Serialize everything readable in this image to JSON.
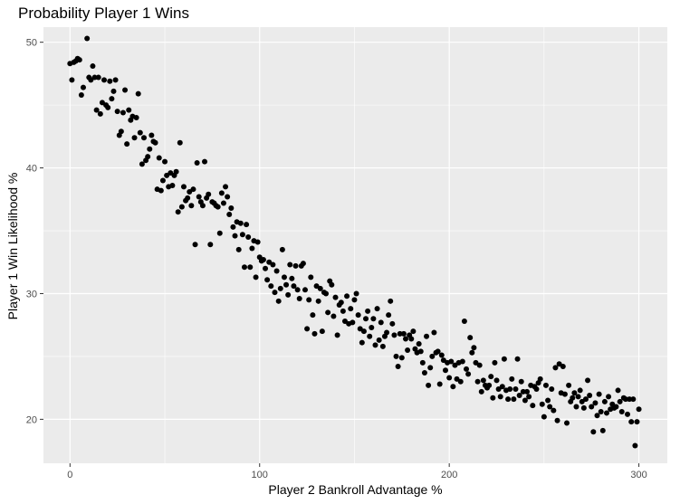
{
  "chart_data": {
    "type": "scatter",
    "title": "Probability Player 1 Wins",
    "xlabel": "Player 2 Bankroll Advantage %",
    "ylabel": "Player 1 Win Likelihood %",
    "xlim": [
      -14,
      315
    ],
    "ylim": [
      16.5,
      51.2
    ],
    "xticks": [
      0,
      100,
      200,
      300
    ],
    "yticks": [
      20,
      30,
      40,
      50
    ],
    "grid": true,
    "point_color": "#000000",
    "panel_background": "#ebebeb",
    "grid_color": "#ffffff",
    "points": [
      [
        0,
        48.3
      ],
      [
        2,
        48.4
      ],
      [
        3,
        48.5
      ],
      [
        4,
        48.7
      ],
      [
        5,
        48.6
      ],
      [
        6,
        45.8
      ],
      [
        7,
        46.4
      ],
      [
        9,
        50.3
      ],
      [
        10,
        47.2
      ],
      [
        11,
        47.0
      ],
      [
        12,
        48.1
      ],
      [
        13,
        47.2
      ],
      [
        14,
        44.6
      ],
      [
        15,
        47.2
      ],
      [
        16,
        44.3
      ],
      [
        17,
        45.2
      ],
      [
        18,
        47.0
      ],
      [
        20,
        44.8
      ],
      [
        21,
        46.9
      ],
      [
        22,
        45.5
      ],
      [
        24,
        47.0
      ],
      [
        25,
        44.5
      ],
      [
        26,
        42.6
      ],
      [
        27,
        42.9
      ],
      [
        28,
        44.4
      ],
      [
        29,
        46.2
      ],
      [
        30,
        41.9
      ],
      [
        31,
        44.6
      ],
      [
        32,
        43.8
      ],
      [
        33,
        44.1
      ],
      [
        34,
        42.4
      ],
      [
        35,
        44.0
      ],
      [
        36,
        45.9
      ],
      [
        37,
        42.8
      ],
      [
        38,
        40.3
      ],
      [
        39,
        42.4
      ],
      [
        40,
        40.6
      ],
      [
        41,
        40.9
      ],
      [
        42,
        41.5
      ],
      [
        43,
        42.6
      ],
      [
        44,
        42.1
      ],
      [
        45,
        42.0
      ],
      [
        46,
        38.3
      ],
      [
        47,
        40.8
      ],
      [
        48,
        38.2
      ],
      [
        49,
        39.0
      ],
      [
        50,
        40.5
      ],
      [
        51,
        39.4
      ],
      [
        52,
        38.5
      ],
      [
        53,
        39.6
      ],
      [
        54,
        38.6
      ],
      [
        55,
        39.4
      ],
      [
        56,
        39.7
      ],
      [
        57,
        36.5
      ],
      [
        58,
        42.0
      ],
      [
        59,
        36.9
      ],
      [
        60,
        38.5
      ],
      [
        61,
        37.4
      ],
      [
        62,
        37.6
      ],
      [
        63,
        38.1
      ],
      [
        64,
        37.0
      ],
      [
        65,
        38.3
      ],
      [
        66,
        33.9
      ],
      [
        67,
        40.4
      ],
      [
        68,
        37.7
      ],
      [
        69,
        37.3
      ],
      [
        70,
        37.0
      ],
      [
        71,
        40.5
      ],
      [
        72,
        37.6
      ],
      [
        73,
        37.9
      ],
      [
        74,
        33.9
      ],
      [
        75,
        37.3
      ],
      [
        76,
        37.2
      ],
      [
        77,
        37.0
      ],
      [
        78,
        36.9
      ],
      [
        79,
        34.8
      ],
      [
        80,
        38.0
      ],
      [
        81,
        37.2
      ],
      [
        82,
        38.5
      ],
      [
        83,
        37.7
      ],
      [
        84,
        36.3
      ],
      [
        85,
        36.8
      ],
      [
        86,
        35.3
      ],
      [
        87,
        34.6
      ],
      [
        88,
        35.7
      ],
      [
        89,
        33.5
      ],
      [
        90,
        35.6
      ],
      [
        91,
        34.7
      ],
      [
        92,
        32.1
      ],
      [
        93,
        35.5
      ],
      [
        94,
        34.5
      ],
      [
        95,
        32.1
      ],
      [
        96,
        33.6
      ],
      [
        97,
        34.2
      ],
      [
        98,
        31.3
      ],
      [
        99,
        34.1
      ],
      [
        100,
        32.9
      ],
      [
        101,
        32.6
      ],
      [
        102,
        32.7
      ],
      [
        103,
        32.0
      ],
      [
        104,
        31.1
      ],
      [
        105,
        32.5
      ],
      [
        106,
        30.6
      ],
      [
        107,
        32.3
      ],
      [
        108,
        30.1
      ],
      [
        109,
        31.8
      ],
      [
        110,
        29.4
      ],
      [
        111,
        30.4
      ],
      [
        112,
        33.5
      ],
      [
        113,
        31.3
      ],
      [
        114,
        30.7
      ],
      [
        115,
        29.9
      ],
      [
        116,
        32.3
      ],
      [
        117,
        31.2
      ],
      [
        118,
        30.6
      ],
      [
        119,
        32.2
      ],
      [
        120,
        30.3
      ],
      [
        121,
        29.6
      ],
      [
        122,
        32.2
      ],
      [
        123,
        32.4
      ],
      [
        124,
        30.3
      ],
      [
        125,
        27.2
      ],
      [
        126,
        29.5
      ],
      [
        127,
        31.3
      ],
      [
        128,
        28.3
      ],
      [
        129,
        26.8
      ],
      [
        130,
        30.6
      ],
      [
        131,
        29.4
      ],
      [
        132,
        30.4
      ],
      [
        133,
        27.0
      ],
      [
        134,
        30.1
      ],
      [
        135,
        30.0
      ],
      [
        136,
        28.5
      ],
      [
        137,
        31.0
      ],
      [
        138,
        30.7
      ],
      [
        139,
        28.2
      ],
      [
        140,
        29.7
      ],
      [
        141,
        26.7
      ],
      [
        142,
        29.1
      ],
      [
        143,
        29.3
      ],
      [
        144,
        28.6
      ],
      [
        145,
        27.8
      ],
      [
        146,
        29.8
      ],
      [
        147,
        27.6
      ],
      [
        148,
        28.8
      ],
      [
        149,
        27.7
      ],
      [
        150,
        29.5
      ],
      [
        151,
        30.0
      ],
      [
        152,
        28.3
      ],
      [
        153,
        27.2
      ],
      [
        154,
        26.1
      ],
      [
        155,
        27.0
      ],
      [
        156,
        28.0
      ],
      [
        157,
        28.6
      ],
      [
        158,
        26.6
      ],
      [
        159,
        27.3
      ],
      [
        160,
        28.0
      ],
      [
        161,
        25.9
      ],
      [
        162,
        28.8
      ],
      [
        163,
        26.3
      ],
      [
        164,
        27.7
      ],
      [
        165,
        25.8
      ],
      [
        166,
        26.6
      ],
      [
        167,
        26.9
      ],
      [
        168,
        28.3
      ],
      [
        169,
        29.4
      ],
      [
        170,
        27.6
      ],
      [
        171,
        26.7
      ],
      [
        172,
        25.0
      ],
      [
        173,
        24.2
      ],
      [
        174,
        26.8
      ],
      [
        175,
        24.9
      ],
      [
        176,
        26.8
      ],
      [
        177,
        26.4
      ],
      [
        178,
        25.5
      ],
      [
        179,
        26.7
      ],
      [
        180,
        26.4
      ],
      [
        181,
        27.0
      ],
      [
        182,
        25.6
      ],
      [
        183,
        25.3
      ],
      [
        184,
        26.0
      ],
      [
        185,
        25.4
      ],
      [
        186,
        24.5
      ],
      [
        187,
        23.7
      ],
      [
        188,
        26.6
      ],
      [
        189,
        22.7
      ],
      [
        190,
        24.1
      ],
      [
        191,
        25.0
      ],
      [
        192,
        26.9
      ],
      [
        193,
        25.3
      ],
      [
        194,
        25.4
      ],
      [
        195,
        22.8
      ],
      [
        196,
        25.1
      ],
      [
        197,
        24.7
      ],
      [
        198,
        23.9
      ],
      [
        199,
        24.5
      ],
      [
        200,
        23.3
      ],
      [
        201,
        24.6
      ],
      [
        202,
        22.6
      ],
      [
        203,
        24.3
      ],
      [
        204,
        23.2
      ],
      [
        205,
        24.5
      ],
      [
        206,
        23.0
      ],
      [
        207,
        24.6
      ],
      [
        208,
        27.8
      ],
      [
        209,
        24.0
      ],
      [
        210,
        23.6
      ],
      [
        211,
        26.5
      ],
      [
        212,
        25.3
      ],
      [
        213,
        25.7
      ],
      [
        214,
        24.5
      ],
      [
        215,
        23.0
      ],
      [
        216,
        24.3
      ],
      [
        217,
        22.2
      ],
      [
        218,
        23.1
      ],
      [
        219,
        22.7
      ],
      [
        220,
        22.5
      ],
      [
        221,
        22.7
      ],
      [
        222,
        23.4
      ],
      [
        223,
        21.7
      ],
      [
        224,
        24.5
      ],
      [
        225,
        23.1
      ],
      [
        226,
        22.4
      ],
      [
        227,
        21.8
      ],
      [
        228,
        22.6
      ],
      [
        229,
        24.8
      ],
      [
        230,
        22.3
      ],
      [
        231,
        21.6
      ],
      [
        232,
        22.4
      ],
      [
        233,
        23.2
      ],
      [
        234,
        21.6
      ],
      [
        235,
        22.4
      ],
      [
        236,
        24.8
      ],
      [
        237,
        21.9
      ],
      [
        238,
        23.0
      ],
      [
        239,
        22.2
      ],
      [
        240,
        21.5
      ],
      [
        241,
        22.2
      ],
      [
        242,
        21.8
      ],
      [
        243,
        22.7
      ],
      [
        244,
        21.1
      ],
      [
        245,
        22.6
      ],
      [
        246,
        22.4
      ],
      [
        247,
        22.9
      ],
      [
        248,
        23.2
      ],
      [
        249,
        21.2
      ],
      [
        250,
        20.2
      ],
      [
        251,
        22.7
      ],
      [
        252,
        21.5
      ],
      [
        253,
        21.0
      ],
      [
        254,
        22.4
      ],
      [
        255,
        20.7
      ],
      [
        256,
        24.1
      ],
      [
        257,
        19.9
      ],
      [
        258,
        24.4
      ],
      [
        259,
        22.1
      ],
      [
        260,
        24.2
      ],
      [
        261,
        22.0
      ],
      [
        262,
        19.7
      ],
      [
        263,
        22.7
      ],
      [
        264,
        21.4
      ],
      [
        265,
        21.7
      ],
      [
        266,
        22.1
      ],
      [
        267,
        21.0
      ],
      [
        268,
        21.8
      ],
      [
        269,
        22.3
      ],
      [
        270,
        21.4
      ],
      [
        271,
        20.9
      ],
      [
        272,
        21.6
      ],
      [
        273,
        23.1
      ],
      [
        274,
        21.9
      ],
      [
        275,
        21.0
      ],
      [
        276,
        19.0
      ],
      [
        277,
        21.3
      ],
      [
        278,
        20.3
      ],
      [
        279,
        22.0
      ],
      [
        280,
        20.6
      ],
      [
        281,
        19.1
      ],
      [
        282,
        21.4
      ],
      [
        283,
        20.5
      ],
      [
        284,
        21.8
      ],
      [
        285,
        20.8
      ],
      [
        286,
        21.2
      ],
      [
        287,
        20.9
      ],
      [
        288,
        21.0
      ],
      [
        289,
        22.3
      ],
      [
        290,
        21.4
      ],
      [
        291,
        20.6
      ],
      [
        292,
        21.7
      ],
      [
        293,
        21.6
      ],
      [
        294,
        20.4
      ],
      [
        295,
        21.6
      ],
      [
        296,
        19.8
      ],
      [
        297,
        21.6
      ],
      [
        298,
        17.9
      ],
      [
        299,
        19.8
      ],
      [
        300,
        20.8
      ],
      [
        1,
        47.0
      ],
      [
        19,
        45.0
      ],
      [
        23,
        46.1
      ]
    ]
  }
}
